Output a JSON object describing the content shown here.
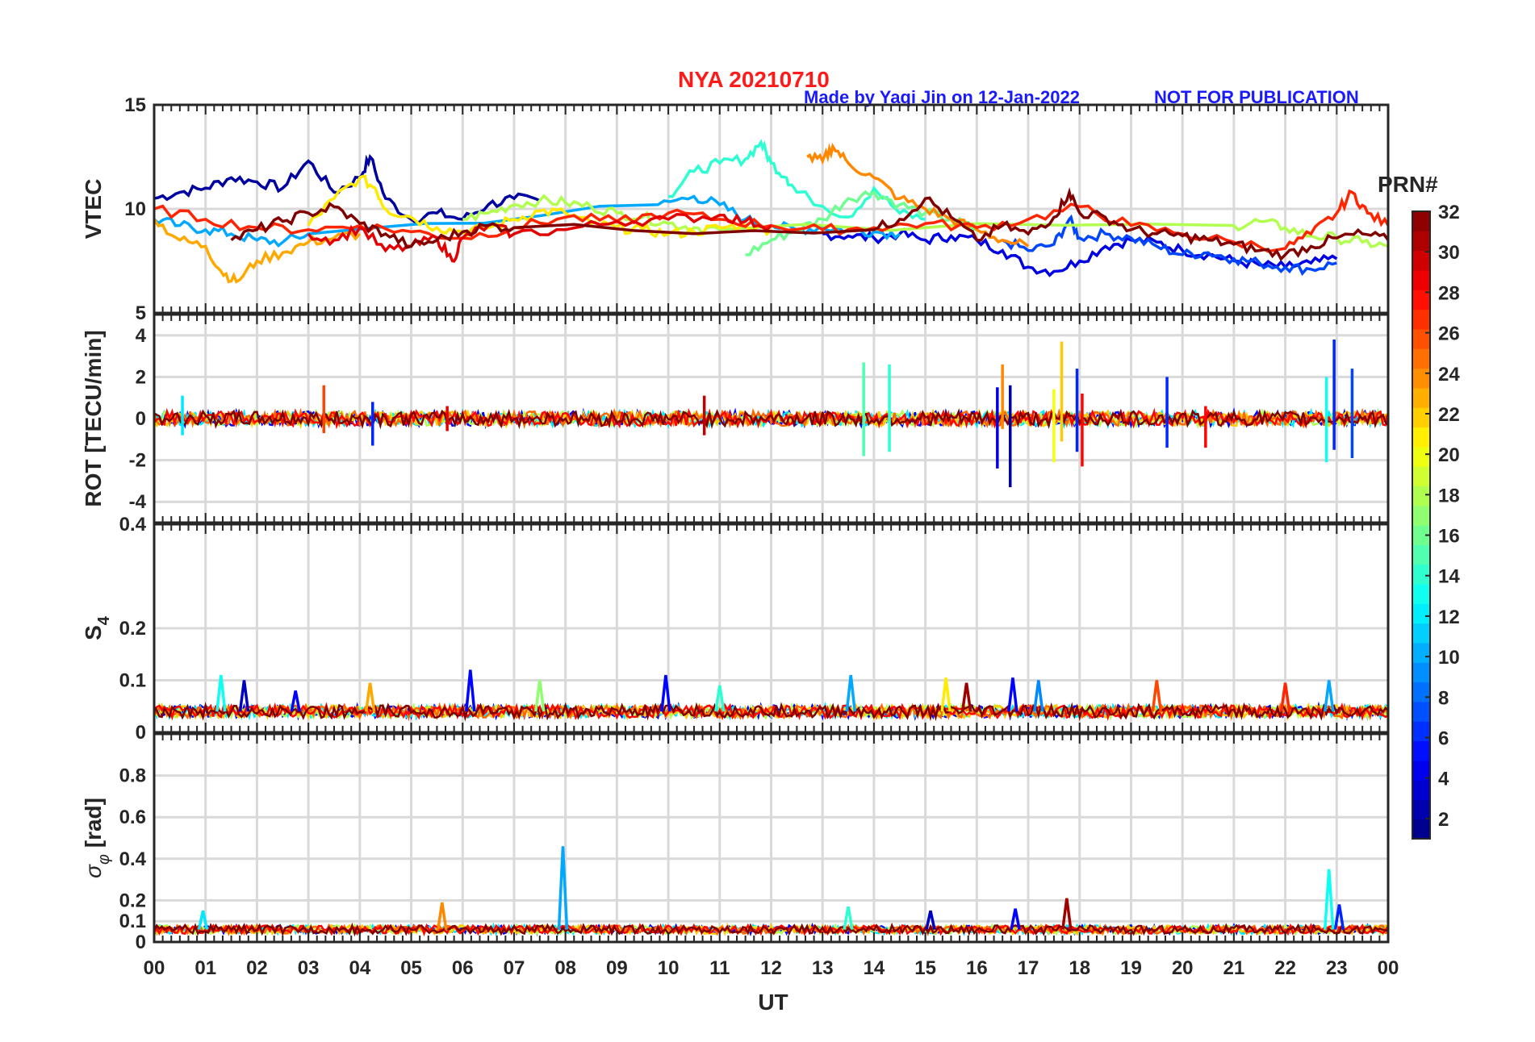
{
  "header": {
    "title": "NYA   20210710",
    "credit": "Made by Yaqi Jin on 12-Jan-2022",
    "notice": "NOT FOR PUBLICATION"
  },
  "colorbar": {
    "label": "PRN#",
    "min": 1,
    "max": 32,
    "ticks": [
      2,
      4,
      6,
      8,
      10,
      12,
      14,
      16,
      18,
      20,
      22,
      24,
      26,
      28,
      30,
      32
    ]
  },
  "x_axis": {
    "label": "UT",
    "ticks": [
      "00",
      "01",
      "02",
      "03",
      "04",
      "05",
      "06",
      "07",
      "08",
      "09",
      "10",
      "11",
      "12",
      "13",
      "14",
      "15",
      "16",
      "17",
      "18",
      "19",
      "20",
      "21",
      "22",
      "23",
      "00"
    ]
  },
  "chart_data": [
    {
      "type": "line",
      "ylabel": "VTEC",
      "ylim": [
        5,
        15
      ],
      "yticks": [
        "15",
        "10",
        "5"
      ],
      "x_range_hours": [
        0,
        24
      ],
      "grid": true,
      "series": [
        {
          "prn": 2,
          "x": [
            0,
            0.5,
            1,
            1.5,
            2,
            2.5,
            3,
            3.5,
            4,
            4.2,
            4.5,
            5,
            5.5,
            6,
            6.5,
            7,
            7.5
          ],
          "values": [
            10.5,
            10.8,
            11,
            11.5,
            11.3,
            11,
            12.3,
            10.8,
            11.5,
            12.5,
            10.5,
            9.5,
            9.8,
            9.5,
            10.2,
            10.5,
            10.4
          ]
        },
        {
          "prn": 4,
          "x": [
            13,
            13.5,
            14,
            14.5,
            15,
            15.5,
            16,
            16.5,
            17,
            17.5,
            18,
            18.5,
            19,
            19.5,
            20,
            20.5,
            21,
            21.5,
            22,
            22.5,
            23
          ],
          "values": [
            8.8,
            8.7,
            8.6,
            8.8,
            8.5,
            8.7,
            8.5,
            8,
            7.2,
            7,
            7.5,
            8.2,
            8.5,
            8.4,
            8,
            7.8,
            7.5,
            7.3,
            7.2,
            7.4,
            7.6
          ]
        },
        {
          "prn": 7,
          "x": [
            16.5,
            17,
            17.5,
            17.8,
            18,
            18.5,
            19,
            19.5,
            20,
            20.5,
            21,
            21.5,
            22,
            22.5,
            23
          ],
          "values": [
            8.5,
            8,
            8.3,
            9.5,
            8.6,
            8.8,
            8.6,
            8.2,
            7.8,
            7.9,
            7.6,
            7.4,
            7.2,
            7.1,
            7.4
          ]
        },
        {
          "prn": 10,
          "x": [
            0,
            0.5,
            1,
            1.5,
            2,
            2.5,
            3,
            9.8,
            10.5,
            11,
            11.5,
            12,
            12.5,
            13,
            13.5,
            14,
            14.5
          ],
          "values": [
            9.5,
            9.2,
            9,
            8.8,
            8.5,
            8.4,
            8.8,
            10.2,
            10.6,
            10.2,
            9.5,
            9.2,
            9.0,
            9.1,
            9.0,
            8.9,
            8.8
          ]
        },
        {
          "prn": 14,
          "x": [
            10,
            10.5,
            11,
            11.5,
            11.8,
            12,
            12.3,
            12.5,
            13.5,
            14,
            14.5,
            15
          ],
          "values": [
            10.6,
            11.8,
            12.2,
            12.4,
            13.2,
            12.2,
            11.5,
            10.8,
            9.6,
            11,
            9.8,
            9.5
          ]
        },
        {
          "prn": 16,
          "x": [
            11.5,
            12,
            12.5,
            13,
            13.5,
            14,
            14.5,
            15,
            15.5,
            16
          ],
          "values": [
            7.8,
            8.5,
            9,
            9.5,
            10.5,
            10.8,
            10.2,
            9.8,
            9.5,
            9
          ]
        },
        {
          "prn": 18,
          "x": [
            6,
            6.5,
            7,
            7.5,
            8,
            8.5,
            9,
            9.5,
            10,
            10.5,
            11,
            21,
            21.5,
            22,
            22.5,
            23,
            23.5,
            24
          ],
          "values": [
            9.5,
            9.8,
            10.2,
            10.4,
            10.3,
            10.1,
            9.8,
            9.6,
            9.3,
            9.1,
            9.0,
            9.2,
            9.4,
            9.1,
            8.7,
            8.6,
            8.4,
            8.2
          ]
        },
        {
          "prn": 21,
          "x": [
            3,
            3.5,
            4,
            4.3,
            4.5,
            5,
            5.5,
            6,
            6.5,
            7,
            7.5,
            8,
            8.5,
            9,
            9.5,
            10,
            10.5,
            11,
            11.5,
            12
          ],
          "values": [
            9.2,
            10.5,
            11.5,
            11,
            10,
            9.6,
            9.1,
            8.9,
            9.1,
            9.5,
            9.9,
            9.8,
            9.3,
            9.1,
            9.0,
            8.8,
            8.9,
            9.1,
            9.2,
            9.0
          ]
        },
        {
          "prn": 23,
          "x": [
            0,
            0.5,
            1,
            1.3,
            1.6,
            2,
            2.5,
            3,
            3.5,
            4
          ],
          "values": [
            9.5,
            8.5,
            8.2,
            7,
            6.5,
            7.5,
            7.9,
            8.4,
            8.6,
            8.8
          ]
        },
        {
          "prn": 24,
          "x": [
            12.7,
            13,
            13.2,
            13.5,
            14,
            14.5,
            15,
            15.5,
            16,
            16.5,
            17
          ],
          "values": [
            12.5,
            12.3,
            13,
            12.2,
            11.5,
            10.5,
            10,
            9.5,
            9.0,
            8.5,
            8.2
          ]
        },
        {
          "prn": 27,
          "x": [
            0,
            1,
            2,
            3,
            4,
            5,
            6,
            7,
            8,
            9,
            10,
            11,
            12,
            13,
            14,
            15,
            16,
            17,
            18,
            19,
            20,
            21,
            22,
            22.5,
            23,
            23.3,
            23.6,
            24
          ],
          "values": [
            10,
            9.5,
            9.1,
            9.0,
            9.2,
            8.9,
            8.6,
            9.1,
            9.6,
            9.4,
            9.8,
            9.5,
            9.2,
            9.0,
            9.1,
            9.3,
            9.1,
            9.5,
            10.1,
            9.2,
            8.8,
            8.4,
            8.1,
            8.8,
            9.8,
            10.8,
            9.8,
            9.2
          ]
        },
        {
          "prn": 29,
          "x": [
            3,
            3.5,
            4,
            4.5,
            5,
            5.5,
            5.8,
            6,
            6.5,
            7,
            8,
            9,
            10,
            11,
            11.5,
            12
          ],
          "values": [
            8.8,
            8.5,
            9.1,
            8.0,
            8.2,
            8.6,
            7.5,
            8.6,
            9.2,
            8.8,
            9.0,
            9.4,
            9.5,
            9.7,
            9.4,
            9.2
          ]
        },
        {
          "prn": 32,
          "x": [
            1.5,
            2,
            2.5,
            3,
            3.5,
            4,
            4.5,
            5,
            5.5,
            6,
            6.5,
            7,
            14,
            14.5,
            15,
            15.5,
            16,
            16.5,
            17,
            17.5,
            17.8,
            18,
            18.5,
            19,
            19.5,
            20,
            20.5,
            21,
            21.5,
            22,
            22.5,
            23,
            23.5,
            24
          ],
          "values": [
            8.5,
            9.0,
            9.4,
            9.8,
            10.1,
            9.3,
            8.8,
            8.2,
            8.5,
            8.9,
            9.2,
            9.1,
            9.0,
            9.5,
            10.5,
            9.6,
            8.5,
            9.2,
            8.8,
            9.6,
            10.8,
            9.8,
            9.6,
            9.0,
            8.8,
            8.7,
            8.5,
            8.3,
            8.0,
            7.8,
            8.2,
            8.6,
            8.8,
            8.5
          ]
        }
      ]
    },
    {
      "type": "line",
      "ylabel": "ROT [TECU/min]",
      "ylim": [
        -5,
        5
      ],
      "yticks": [
        "4",
        "2",
        "0",
        "-2",
        "-4"
      ],
      "x_range_hours": [
        0,
        24
      ],
      "grid": true,
      "note_baseline": 0,
      "spikes": [
        {
          "prn": 12,
          "x": 0.55,
          "values": [
            1.1,
            -0.8
          ]
        },
        {
          "prn": 26,
          "x": 3.3,
          "values": [
            1.6,
            -0.7
          ]
        },
        {
          "prn": 6,
          "x": 4.25,
          "values": [
            0.8,
            -1.3
          ]
        },
        {
          "prn": 29,
          "x": 5.7,
          "values": [
            0.6,
            -0.6
          ]
        },
        {
          "prn": 30,
          "x": 10.7,
          "values": [
            1.1,
            -0.8
          ]
        },
        {
          "prn": 15,
          "x": 13.8,
          "values": [
            2.7,
            -1.8
          ]
        },
        {
          "prn": 14,
          "x": 14.3,
          "values": [
            2.6,
            -1.6
          ]
        },
        {
          "prn": 4,
          "x": 16.4,
          "values": [
            1.5,
            -2.4
          ]
        },
        {
          "prn": 24,
          "x": 16.5,
          "values": [
            2.6,
            -0.5
          ]
        },
        {
          "prn": 2,
          "x": 16.65,
          "values": [
            1.6,
            -3.3
          ]
        },
        {
          "prn": 20,
          "x": 17.5,
          "values": [
            1.4,
            -2.1
          ]
        },
        {
          "prn": 22,
          "x": 17.65,
          "values": [
            3.7,
            -1.1
          ]
        },
        {
          "prn": 6,
          "x": 17.95,
          "values": [
            2.4,
            -1.6
          ]
        },
        {
          "prn": 28,
          "x": 18.05,
          "values": [
            1.2,
            -2.3
          ]
        },
        {
          "prn": 6,
          "x": 19.7,
          "values": [
            2.0,
            -1.4
          ]
        },
        {
          "prn": 28,
          "x": 20.45,
          "values": [
            0.6,
            -1.4
          ]
        },
        {
          "prn": 13,
          "x": 22.8,
          "values": [
            2.0,
            -2.1
          ]
        },
        {
          "prn": 6,
          "x": 22.95,
          "values": [
            3.8,
            -1.5
          ]
        },
        {
          "prn": 7,
          "x": 23.3,
          "values": [
            2.4,
            -1.9
          ]
        }
      ]
    },
    {
      "type": "line",
      "ylabel": "S4",
      "ylim": [
        0,
        0.4
      ],
      "yticks": [
        "0.4",
        "0.2",
        "0.1",
        "0"
      ],
      "x_range_hours": [
        0,
        24
      ],
      "grid": true,
      "baseline_typical": 0.04,
      "spikes": [
        {
          "prn": 13,
          "x": 1.3,
          "value": 0.11
        },
        {
          "prn": 3,
          "x": 1.75,
          "value": 0.1
        },
        {
          "prn": 5,
          "x": 2.75,
          "value": 0.08
        },
        {
          "prn": 23,
          "x": 4.2,
          "value": 0.095
        },
        {
          "prn": 5,
          "x": 6.15,
          "value": 0.12
        },
        {
          "prn": 17,
          "x": 7.5,
          "value": 0.1
        },
        {
          "prn": 5,
          "x": 9.95,
          "value": 0.11
        },
        {
          "prn": 14,
          "x": 11.0,
          "value": 0.09
        },
        {
          "prn": 10,
          "x": 13.55,
          "value": 0.11
        },
        {
          "prn": 21,
          "x": 15.4,
          "value": 0.105
        },
        {
          "prn": 31,
          "x": 15.8,
          "value": 0.095
        },
        {
          "prn": 5,
          "x": 16.7,
          "value": 0.105
        },
        {
          "prn": 9,
          "x": 17.2,
          "value": 0.1
        },
        {
          "prn": 26,
          "x": 19.5,
          "value": 0.1
        },
        {
          "prn": 27,
          "x": 22.0,
          "value": 0.095
        },
        {
          "prn": 10,
          "x": 22.85,
          "value": 0.1
        }
      ]
    },
    {
      "type": "line",
      "ylabel": "σφ [rad]",
      "ylim": [
        0,
        1
      ],
      "yticks": [
        "0.8",
        "0.6",
        "0.4",
        "0.2",
        "0.1",
        "0"
      ],
      "x_range_hours": [
        0,
        24
      ],
      "grid": true,
      "baseline_typical": 0.06,
      "spikes": [
        {
          "prn": 12,
          "x": 0.95,
          "value": 0.15
        },
        {
          "prn": 24,
          "x": 5.6,
          "value": 0.19
        },
        {
          "prn": 10,
          "x": 7.95,
          "value": 0.46
        },
        {
          "prn": 14,
          "x": 13.5,
          "value": 0.17
        },
        {
          "prn": 3,
          "x": 15.1,
          "value": 0.15
        },
        {
          "prn": 5,
          "x": 16.75,
          "value": 0.16
        },
        {
          "prn": 31,
          "x": 17.75,
          "value": 0.21
        },
        {
          "prn": 13,
          "x": 22.85,
          "value": 0.35
        },
        {
          "prn": 6,
          "x": 23.05,
          "value": 0.18
        }
      ]
    }
  ]
}
